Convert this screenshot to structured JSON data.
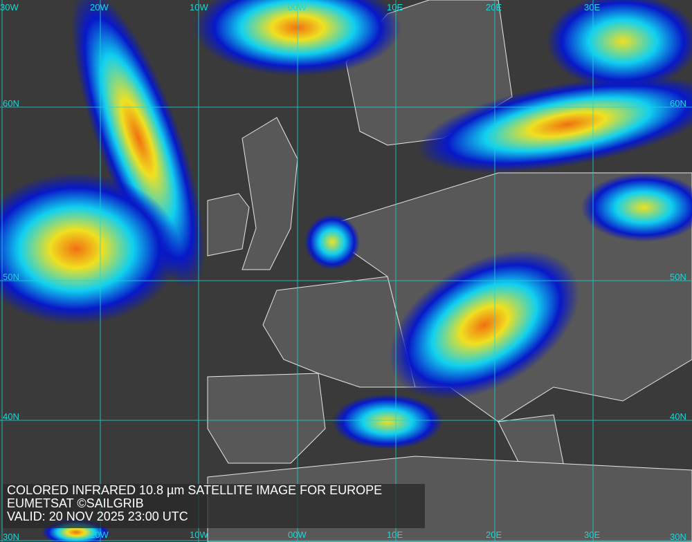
{
  "caption": {
    "line1": "COLORED INFRARED 10.8 µm SATELLITE IMAGE FOR EUROPE",
    "line2": "EUMETSAT ©SAILGRIB",
    "line3": "VALID:  20 NOV 2025 23:00 UTC"
  },
  "grid": {
    "longitude_labels": [
      "30W",
      "20W",
      "10W",
      "00W",
      "10E",
      "20E",
      "30E"
    ],
    "latitude_labels": [
      "60N",
      "50N",
      "40N",
      "30N"
    ],
    "color": "#19d8d8"
  },
  "palette": {
    "background_gray": "#3a3a3a",
    "land_gray": "#5a5a5a",
    "cloud_blue": "#0010c8",
    "cloud_cyan": "#10d0f0",
    "cloud_yellow": "#f0e020",
    "cloud_orange": "#f08010",
    "coastline": "#ffffff"
  }
}
